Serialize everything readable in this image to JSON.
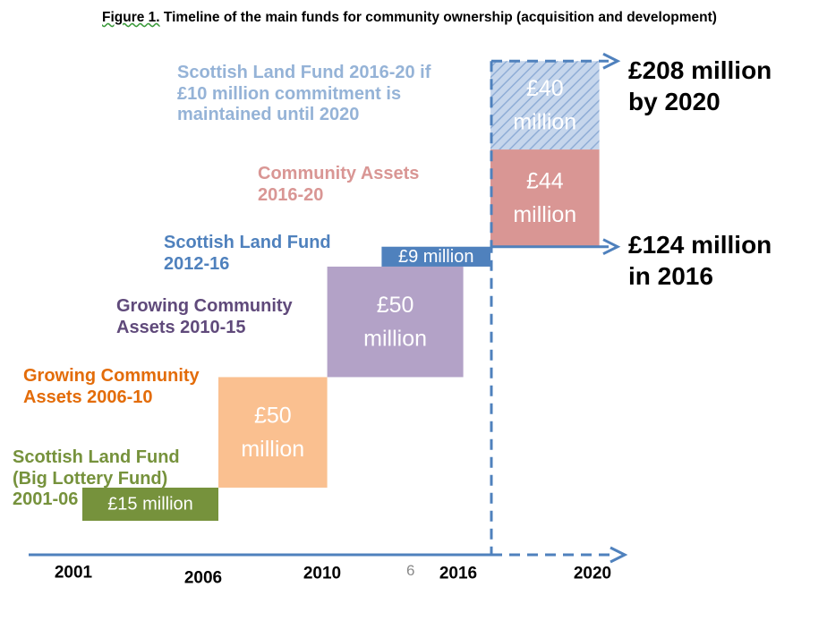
{
  "title_prefix": "Figure 1.",
  "title_rest": " Timeline of the main funds for community ownership (acquisition and development)",
  "page_number": "6",
  "chart_data": {
    "type": "bar",
    "x_ticks": [
      "2001",
      "2006",
      "2010",
      "2016",
      "2020"
    ],
    "x_tick_values": [
      2001,
      2006,
      2010,
      2016,
      2020
    ],
    "funds": [
      {
        "name": "Scottish Land Fund (Big Lottery Fund) 2001-06",
        "label": [
          "Scottish Land Fund",
          "(Big Lottery Fund)",
          "2001-06"
        ],
        "value_label": [
          "£15 million"
        ],
        "start": 2001,
        "end": 2006,
        "value": 15,
        "base": 0,
        "color": "#76923c",
        "label_color": "#76923c",
        "text_color": "#ffffff",
        "hatched": false
      },
      {
        "name": "Growing Community Assets 2006-10",
        "label": [
          "Growing Community",
          "Assets 2006-10"
        ],
        "value_label": [
          "£50",
          "million"
        ],
        "start": 2006,
        "end": 2010,
        "value": 50,
        "base": 15,
        "color": "#fac090",
        "label_color": "#e36c09",
        "text_color": "#ffffff",
        "hatched": false
      },
      {
        "name": "Growing Community Assets 2010-15",
        "label": [
          "Growing Community",
          "Assets 2010-15"
        ],
        "value_label": [
          "£50",
          "million"
        ],
        "start": 2010,
        "end": 2015,
        "value": 50,
        "base": 65,
        "color": "#b3a2c7",
        "label_color": "#604a7b",
        "text_color": "#ffffff",
        "hatched": false
      },
      {
        "name": "Scottish Land Fund 2012-16",
        "label": [
          "Scottish Land Fund",
          "2012-16"
        ],
        "value_label": [
          "£9 million"
        ],
        "start": 2012,
        "end": 2016,
        "value": 9,
        "base": 115,
        "color": "#4f81bd",
        "label_color": "#4f81bd",
        "text_color": "#ffffff",
        "hatched": false
      },
      {
        "name": "Community Assets 2016-20",
        "label": [
          "Community Assets",
          "2016-20"
        ],
        "value_label": [
          "£44",
          "million"
        ],
        "start": 2016,
        "end": 2020,
        "value": 44,
        "base": 124,
        "color": "#d99694",
        "label_color": "#d99694",
        "text_color": "#ffffff",
        "hatched": false
      },
      {
        "name": "Scottish Land Fund 2016-20 if £10 million commitment is maintained until 2020",
        "label": [
          "Scottish Land Fund 2016-20 if",
          "£10 million commitment is",
          "maintained until 2020"
        ],
        "value_label": [
          "£40",
          "million"
        ],
        "start": 2016,
        "end": 2020,
        "value": 40,
        "base": 168,
        "color": "#95b3d7",
        "label_color": "#95b3d7",
        "text_color": "#ffffff",
        "hatched": true
      }
    ],
    "totals": [
      {
        "label": [
          "£124 million",
          "in 2016"
        ],
        "value": 124
      },
      {
        "label": [
          "£208 million",
          "by 2020"
        ],
        "value": 208
      }
    ]
  }
}
